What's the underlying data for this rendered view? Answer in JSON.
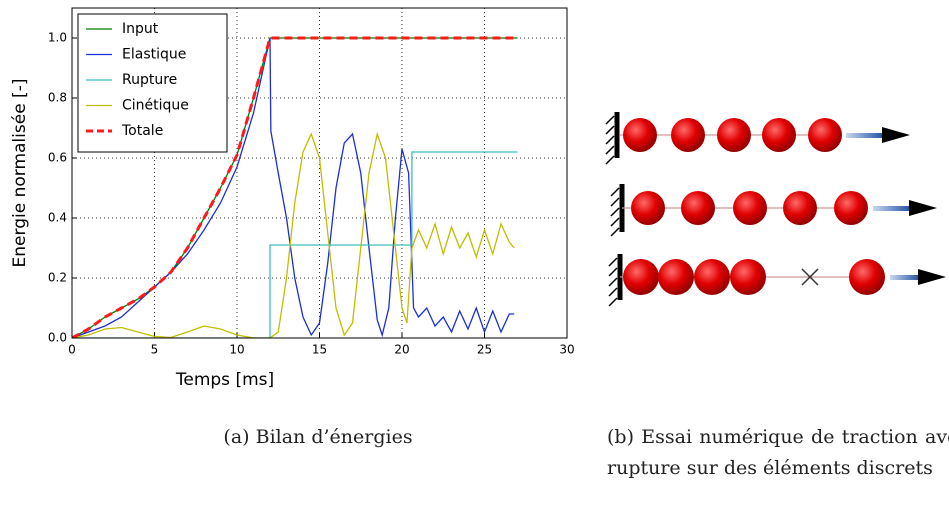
{
  "chart_data": {
    "type": "line",
    "xlabel": "Temps [ms]",
    "ylabel": "Energie normalisée [-]",
    "xlim": [
      0,
      30
    ],
    "xticks": [
      0,
      5,
      10,
      15,
      20,
      25,
      30
    ],
    "ylim": [
      0,
      1.1
    ],
    "yticks": [
      {
        "value": 0,
        "label": "0.0"
      },
      0.2,
      0.4,
      0.6,
      0.8,
      {
        "value": 1,
        "label": "1.0"
      }
    ],
    "grid": true,
    "legend": "upper left",
    "series": [
      {
        "name": "Input",
        "color": "#008000",
        "x": [
          0,
          1,
          2,
          3,
          4,
          5,
          6,
          7,
          8,
          9,
          10,
          11,
          12,
          27
        ],
        "values": [
          0,
          0.03,
          0.07,
          0.1,
          0.13,
          0.17,
          0.22,
          0.3,
          0.4,
          0.5,
          0.61,
          0.8,
          1.0,
          1.0
        ]
      },
      {
        "name": "Elastique",
        "color": "#1a2fd6",
        "x": [
          0,
          1,
          2,
          3,
          4,
          5,
          6,
          7,
          8,
          9,
          10,
          11,
          12,
          12.05,
          12.5,
          13,
          13.5,
          14,
          14.5,
          15,
          15.5,
          16,
          16.5,
          17,
          17.5,
          18,
          18.5,
          18.8,
          19.2,
          19.6,
          20,
          20.4,
          20.6,
          20.7,
          21,
          21.5,
          22,
          22.5,
          23,
          23.5,
          24,
          24.5,
          25,
          25.5,
          26,
          26.5,
          26.8
        ],
        "values": [
          0,
          0.02,
          0.04,
          0.07,
          0.12,
          0.17,
          0.22,
          0.28,
          0.36,
          0.45,
          0.57,
          0.75,
          1.0,
          0.69,
          0.55,
          0.4,
          0.2,
          0.07,
          0.01,
          0.05,
          0.25,
          0.5,
          0.65,
          0.68,
          0.55,
          0.3,
          0.06,
          0.01,
          0.1,
          0.4,
          0.63,
          0.55,
          0.25,
          0.1,
          0.07,
          0.1,
          0.04,
          0.07,
          0.02,
          0.09,
          0.03,
          0.1,
          0.02,
          0.09,
          0.02,
          0.08,
          0.08
        ]
      },
      {
        "name": "Rupture",
        "color": "#3cbfbf",
        "x": [
          0,
          12,
          12,
          20.6,
          20.6,
          27
        ],
        "values": [
          0,
          0,
          0.31,
          0.31,
          0.62,
          0.62
        ]
      },
      {
        "name": "Cinétique",
        "color": "#bfbf00",
        "x": [
          0,
          1,
          2,
          3,
          4,
          5,
          6,
          7,
          8,
          9,
          10,
          11,
          12,
          12.5,
          13,
          13.5,
          14,
          14.5,
          15,
          15.5,
          16,
          16.5,
          17,
          17.5,
          18,
          18.5,
          19,
          19.5,
          20,
          20.3,
          20.6,
          21,
          21.5,
          22,
          22.5,
          23,
          23.5,
          24,
          24.5,
          25,
          25.5,
          26,
          26.5,
          26.8
        ],
        "values": [
          0,
          0.01,
          0.03,
          0.035,
          0.02,
          0.005,
          0.002,
          0.02,
          0.04,
          0.03,
          0.01,
          0,
          0,
          0.02,
          0.2,
          0.45,
          0.62,
          0.68,
          0.6,
          0.35,
          0.1,
          0.01,
          0.05,
          0.3,
          0.55,
          0.68,
          0.6,
          0.35,
          0.1,
          0.05,
          0.3,
          0.36,
          0.3,
          0.38,
          0.28,
          0.37,
          0.3,
          0.35,
          0.27,
          0.36,
          0.28,
          0.38,
          0.32,
          0.3
        ]
      },
      {
        "name": "Totale",
        "color": "#ff1a1a",
        "dashed": true,
        "x": [
          0,
          1,
          2,
          3,
          4,
          5,
          6,
          7,
          8,
          9,
          10,
          11,
          12,
          27
        ],
        "values": [
          0,
          0.03,
          0.07,
          0.1,
          0.13,
          0.17,
          0.22,
          0.3,
          0.4,
          0.5,
          0.61,
          0.8,
          1.0,
          1.0
        ]
      }
    ]
  },
  "captions": [
    "(a) Bilan d’énergies",
    "(b) Essai numérique de traction avec rupture sur des éléments discrets"
  ]
}
